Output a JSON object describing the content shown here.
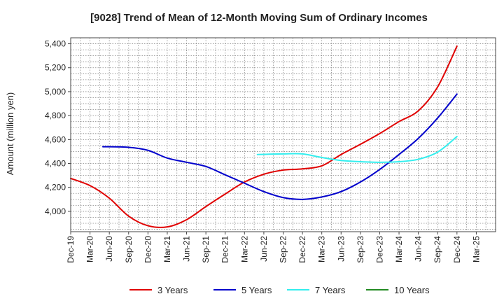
{
  "chart_data": {
    "type": "line",
    "title": "[9028]  Trend of Mean of 12-Month Moving Sum of Ordinary Incomes",
    "xlabel": "",
    "ylabel": "Amount (million yen)",
    "ylim": [
      3830,
      5450
    ],
    "yticks": [
      4000,
      4200,
      4400,
      4600,
      4800,
      5000,
      5200,
      5400
    ],
    "ytick_labels": [
      "4,000",
      "4,200",
      "4,400",
      "4,600",
      "4,800",
      "5,000",
      "5,200",
      "5,400"
    ],
    "x_categories": [
      "Dec-19",
      "Mar-20",
      "Jun-20",
      "Sep-20",
      "Dec-20",
      "Mar-21",
      "Jun-21",
      "Sep-21",
      "Dec-21",
      "Mar-22",
      "Jun-22",
      "Sep-22",
      "Dec-22",
      "Mar-23",
      "Jun-23",
      "Sep-23",
      "Dec-23",
      "Mar-24",
      "Jun-24",
      "Sep-24",
      "Dec-24",
      "Mar-25"
    ],
    "grid": true,
    "legend_position": "bottom",
    "series": [
      {
        "name": "3 Years",
        "color": "#e00000",
        "points": [
          [
            0,
            4275
          ],
          [
            1,
            4215
          ],
          [
            2,
            4110
          ],
          [
            3,
            3960
          ],
          [
            4,
            3880
          ],
          [
            5,
            3870
          ],
          [
            6,
            3930
          ],
          [
            7,
            4040
          ],
          [
            8,
            4145
          ],
          [
            9,
            4245
          ],
          [
            10,
            4310
          ],
          [
            11,
            4345
          ],
          [
            12,
            4355
          ],
          [
            13,
            4380
          ],
          [
            14,
            4475
          ],
          [
            15,
            4560
          ],
          [
            16,
            4650
          ],
          [
            17,
            4750
          ],
          [
            18,
            4840
          ],
          [
            19,
            5040
          ],
          [
            20,
            5380
          ]
        ]
      },
      {
        "name": "5 Years",
        "color": "#0000cc",
        "points": [
          [
            1.6667,
            4540
          ],
          [
            3,
            4535
          ],
          [
            4,
            4510
          ],
          [
            5,
            4445
          ],
          [
            6,
            4410
          ],
          [
            7,
            4375
          ],
          [
            8,
            4305
          ],
          [
            9,
            4235
          ],
          [
            10,
            4165
          ],
          [
            11,
            4115
          ],
          [
            12,
            4100
          ],
          [
            13,
            4120
          ],
          [
            14,
            4165
          ],
          [
            15,
            4245
          ],
          [
            16,
            4350
          ],
          [
            17,
            4475
          ],
          [
            18,
            4610
          ],
          [
            19,
            4780
          ],
          [
            20,
            4980
          ]
        ]
      },
      {
        "name": "7 Years",
        "color": "#33eeee",
        "points": [
          [
            9.6667,
            4475
          ],
          [
            11,
            4480
          ],
          [
            12,
            4480
          ],
          [
            13,
            4450
          ],
          [
            14,
            4425
          ],
          [
            15,
            4415
          ],
          [
            16,
            4410
          ],
          [
            17,
            4415
          ],
          [
            18,
            4435
          ],
          [
            19,
            4495
          ],
          [
            20,
            4625
          ]
        ]
      },
      {
        "name": "10 Years",
        "color": "#228b22",
        "points": []
      }
    ]
  }
}
